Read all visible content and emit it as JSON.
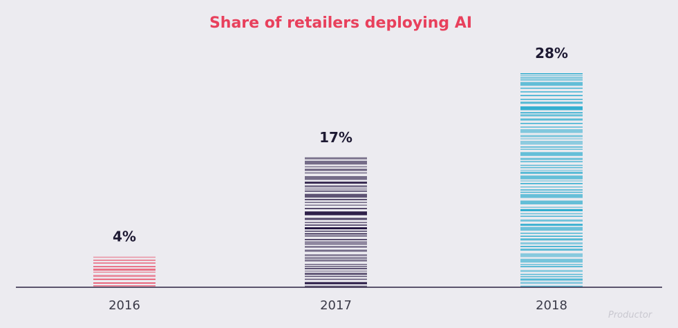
{
  "chart_data": {
    "type": "bar",
    "title": "Share of retailers deploying AI",
    "categories": [
      "2016",
      "2017",
      "2018"
    ],
    "values": [
      4,
      17,
      28
    ],
    "value_labels": [
      "4%",
      "17%",
      "28%"
    ],
    "unit": "%",
    "ylim": [
      0,
      28
    ],
    "grid": false,
    "legend": "none",
    "colors": [
      "#e8405c",
      "#1e0f3c",
      "#22a8cc"
    ],
    "title_color": "#e8405c",
    "axis_color": "#2a2140"
  },
  "watermark": "Productor"
}
